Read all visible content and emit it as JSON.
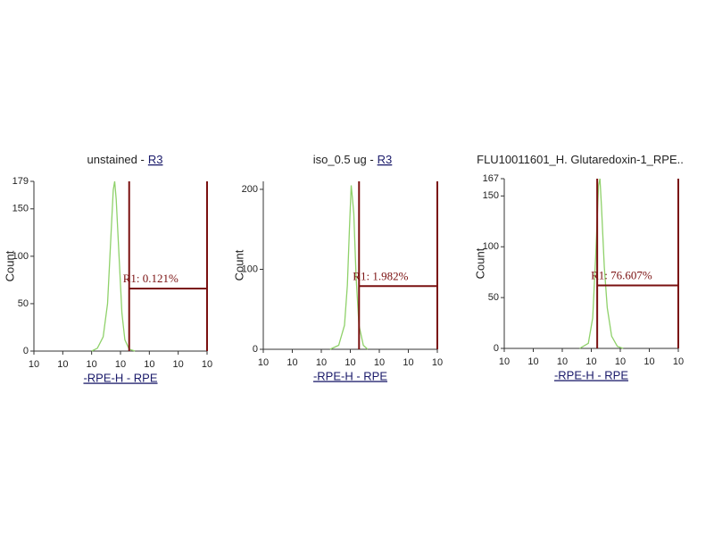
{
  "chart_data": [
    {
      "type": "line",
      "title": "unstained -",
      "region": "R3",
      "xlabel": "-RPE-H - RPE",
      "ylabel": "Count",
      "xscale": "log",
      "xlim": [
        1,
        1000000
      ],
      "xticks": [
        {
          "value": 1,
          "label": "10"
        },
        {
          "value": 10,
          "label": "10"
        },
        {
          "value": 100,
          "label": "10"
        },
        {
          "value": 1000,
          "label": "10"
        },
        {
          "value": 10000,
          "label": "10"
        },
        {
          "value": 100000,
          "label": "10"
        },
        {
          "value": 1000000,
          "label": "10"
        }
      ],
      "ylim": [
        0,
        179
      ],
      "yticks": [
        0,
        50,
        100,
        150,
        179
      ],
      "color": "#8fd16a",
      "x": [
        100,
        158,
        251,
        355,
        447,
        562,
        631,
        708,
        891,
        1122,
        1413,
        1995,
        3162
      ],
      "values": [
        0,
        3,
        15,
        50,
        110,
        170,
        179,
        160,
        100,
        40,
        12,
        2,
        0
      ],
      "gate": {
        "label": "R1: 0.121%",
        "x": [
          2000,
          1000000
        ],
        "y": 66,
        "color": "#7a1010"
      }
    },
    {
      "type": "line",
      "title": "iso_0.5 ug -",
      "region": "R3",
      "xlabel": "-RPE-H - RPE",
      "ylabel": "Count",
      "xscale": "log",
      "xlim": [
        1,
        1000000
      ],
      "xticks": [
        {
          "value": 1,
          "label": "10"
        },
        {
          "value": 10,
          "label": "10"
        },
        {
          "value": 100,
          "label": "10"
        },
        {
          "value": 1000,
          "label": "10"
        },
        {
          "value": 10000,
          "label": "10"
        },
        {
          "value": 100000,
          "label": "10"
        },
        {
          "value": 1000000,
          "label": "10"
        }
      ],
      "ylim": [
        0,
        210
      ],
      "yticks": [
        0,
        100,
        200
      ],
      "color": "#8fd16a",
      "x": [
        200,
        398,
        631,
        794,
        933,
        1072,
        1175,
        1318,
        1585,
        1995,
        2818,
        3981
      ],
      "values": [
        0,
        5,
        30,
        80,
        150,
        205,
        190,
        170,
        90,
        30,
        5,
        0
      ],
      "gate": {
        "label": "R1: 1.982%",
        "x": [
          2000,
          1000000
        ],
        "y": 79,
        "color": "#7a1010"
      }
    },
    {
      "type": "line",
      "title": "FLU10011601_H. Glutaredoxin-1_RPE..",
      "xlabel": "-RPE-H - RPE",
      "ylabel": "Count",
      "xscale": "log",
      "xlim": [
        1,
        1000000
      ],
      "xticks": [
        {
          "value": 1,
          "label": "10"
        },
        {
          "value": 10,
          "label": "10"
        },
        {
          "value": 100,
          "label": "10"
        },
        {
          "value": 1000,
          "label": "10"
        },
        {
          "value": 10000,
          "label": "10"
        },
        {
          "value": 100000,
          "label": "10"
        },
        {
          "value": 1000000,
          "label": "10"
        }
      ],
      "ylim": [
        0,
        167
      ],
      "yticks": [
        0,
        50,
        100,
        150,
        167
      ],
      "color": "#8fd16a",
      "x": [
        398,
        794,
        1122,
        1413,
        1778,
        1995,
        2239,
        2818,
        3548,
        5012,
        7943,
        12589
      ],
      "values": [
        0,
        5,
        30,
        90,
        160,
        167,
        140,
        80,
        40,
        12,
        2,
        0
      ],
      "gate": {
        "label": "R1: 76.607%",
        "x": [
          1600,
          1000000
        ],
        "y": 62,
        "color": "#7a1010"
      }
    }
  ]
}
